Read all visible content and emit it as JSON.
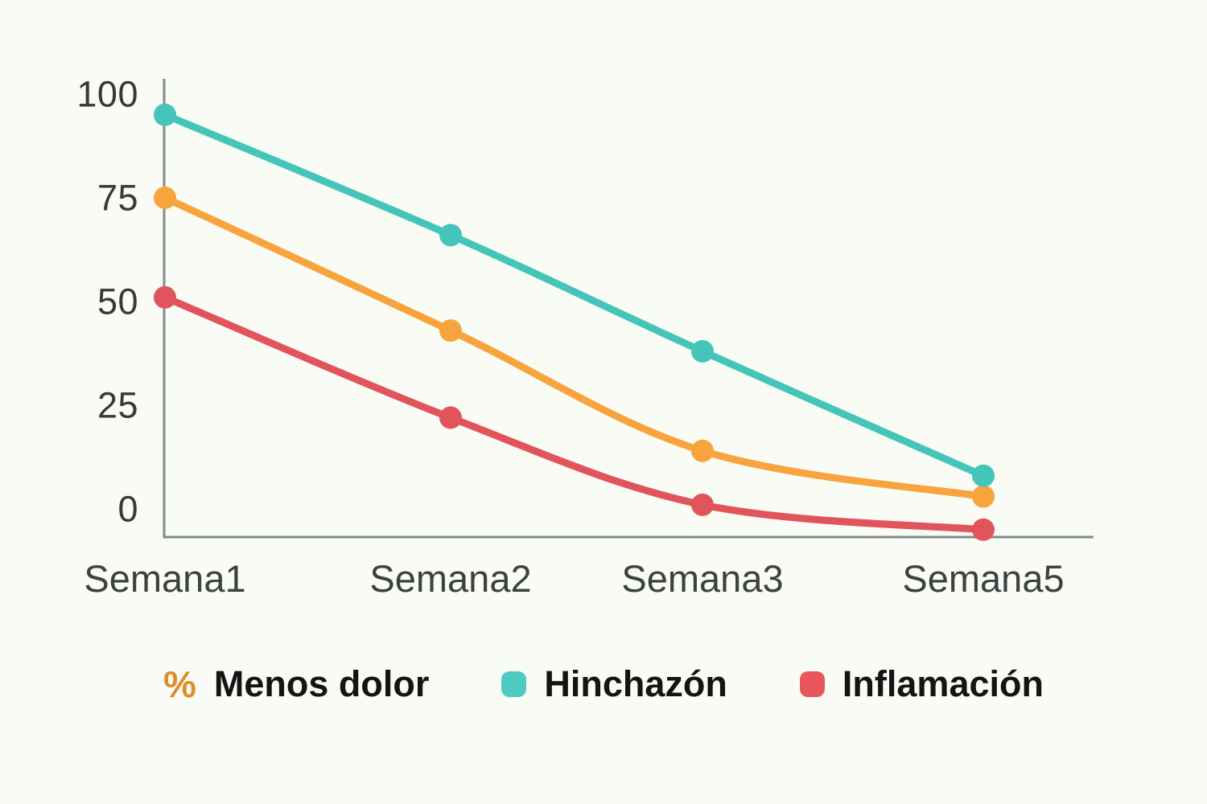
{
  "chart_data": {
    "type": "line",
    "categories": [
      "Semana1",
      "Semana2",
      "Semana3",
      "Semana5"
    ],
    "series": [
      {
        "name": "% Menos dolor",
        "color": "#F8A43E",
        "values": [
          75,
          43,
          14,
          3
        ]
      },
      {
        "name": "Hinchazón",
        "color": "#45C4BA",
        "values": [
          95,
          66,
          38,
          8
        ]
      },
      {
        "name": "Inflamación",
        "color": "#E2545B",
        "values": [
          51,
          22,
          1,
          -5
        ]
      }
    ],
    "yticks": [
      100,
      75,
      50,
      25,
      0
    ],
    "ylim": [
      0,
      100
    ],
    "xlabel": "",
    "ylabel": "",
    "title": "",
    "grid": false,
    "legend_position": "bottom",
    "marker": "circle",
    "curve": "smooth"
  },
  "legend": {
    "items": [
      {
        "symbol": "%",
        "symbol_color": "#DD8E2B",
        "label": "Menos dolor",
        "marker": "percent-sign",
        "color": "#F8A43E"
      },
      {
        "label": "Hinchazón",
        "marker": "rounded-square",
        "color": "#4CCBC2"
      },
      {
        "label": "Inflamación",
        "marker": "rounded-square",
        "color": "#E9565D"
      }
    ]
  },
  "colors": {
    "background": "#F9FBF5",
    "axis": "#848B86",
    "tick_text": "#36393A",
    "category_text": "#3C4140",
    "legend_text": "#141414"
  }
}
